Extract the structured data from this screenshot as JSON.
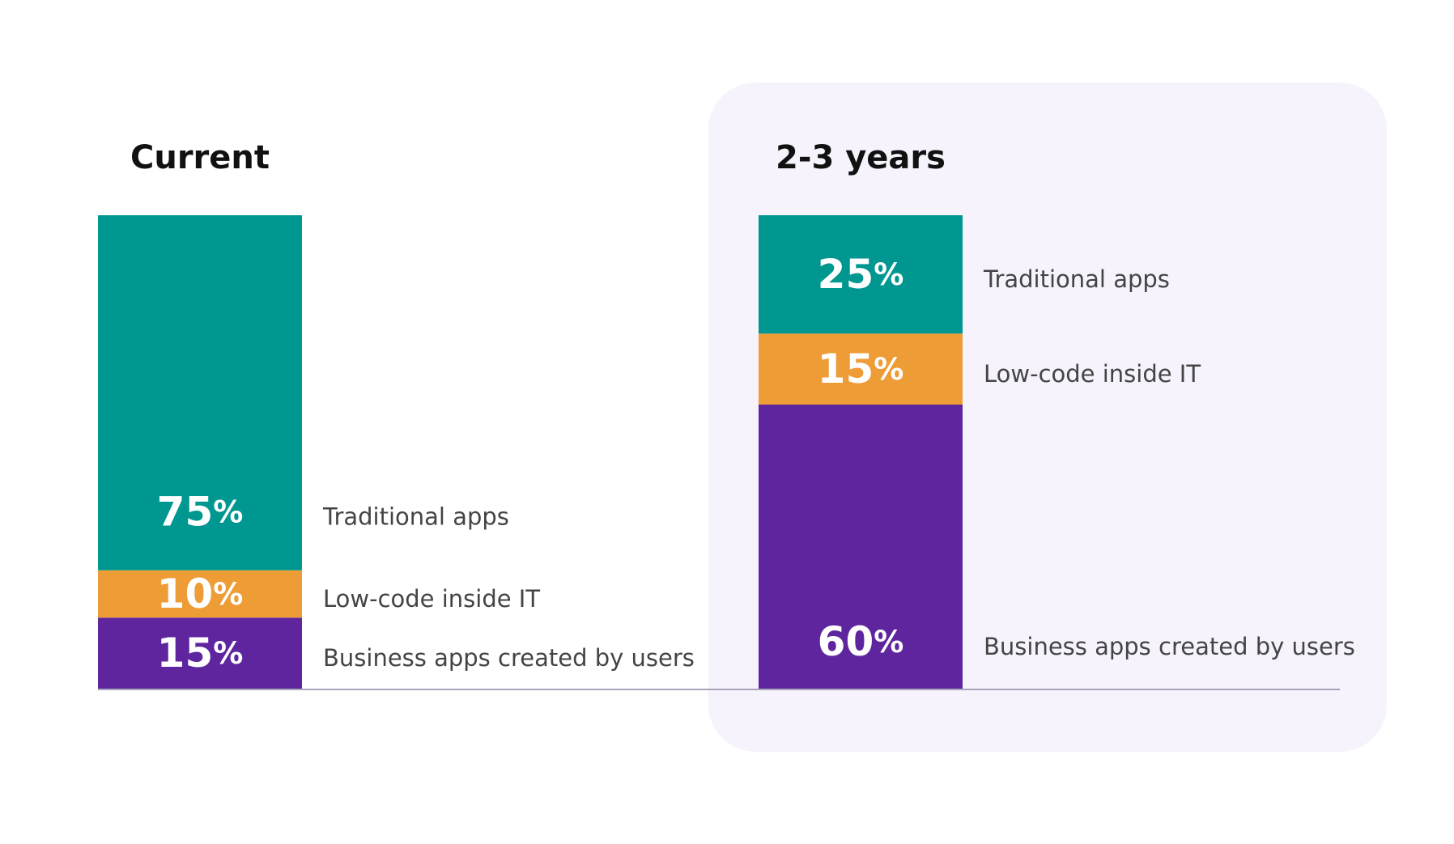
{
  "chart_data": {
    "type": "bar",
    "stacked": true,
    "normalized_percent": true,
    "categories": [
      "Current",
      "2-3 years"
    ],
    "series": [
      {
        "name": "Business apps created by users",
        "values": [
          15,
          60
        ],
        "color": "#5E259F"
      },
      {
        "name": "Low-code inside IT",
        "values": [
          10,
          15
        ],
        "color": "#EE9C35"
      },
      {
        "name": "Traditional apps",
        "values": [
          75,
          25
        ],
        "color": "#009790"
      }
    ],
    "value_suffix": "%",
    "ylim": [
      0,
      100
    ],
    "grid": false,
    "legend": "inline-right-of-each-bar",
    "highlight": {
      "category": "2-3 years",
      "panel_color": "#F6F3FD"
    },
    "baseline_color": "#A9A4BA"
  }
}
